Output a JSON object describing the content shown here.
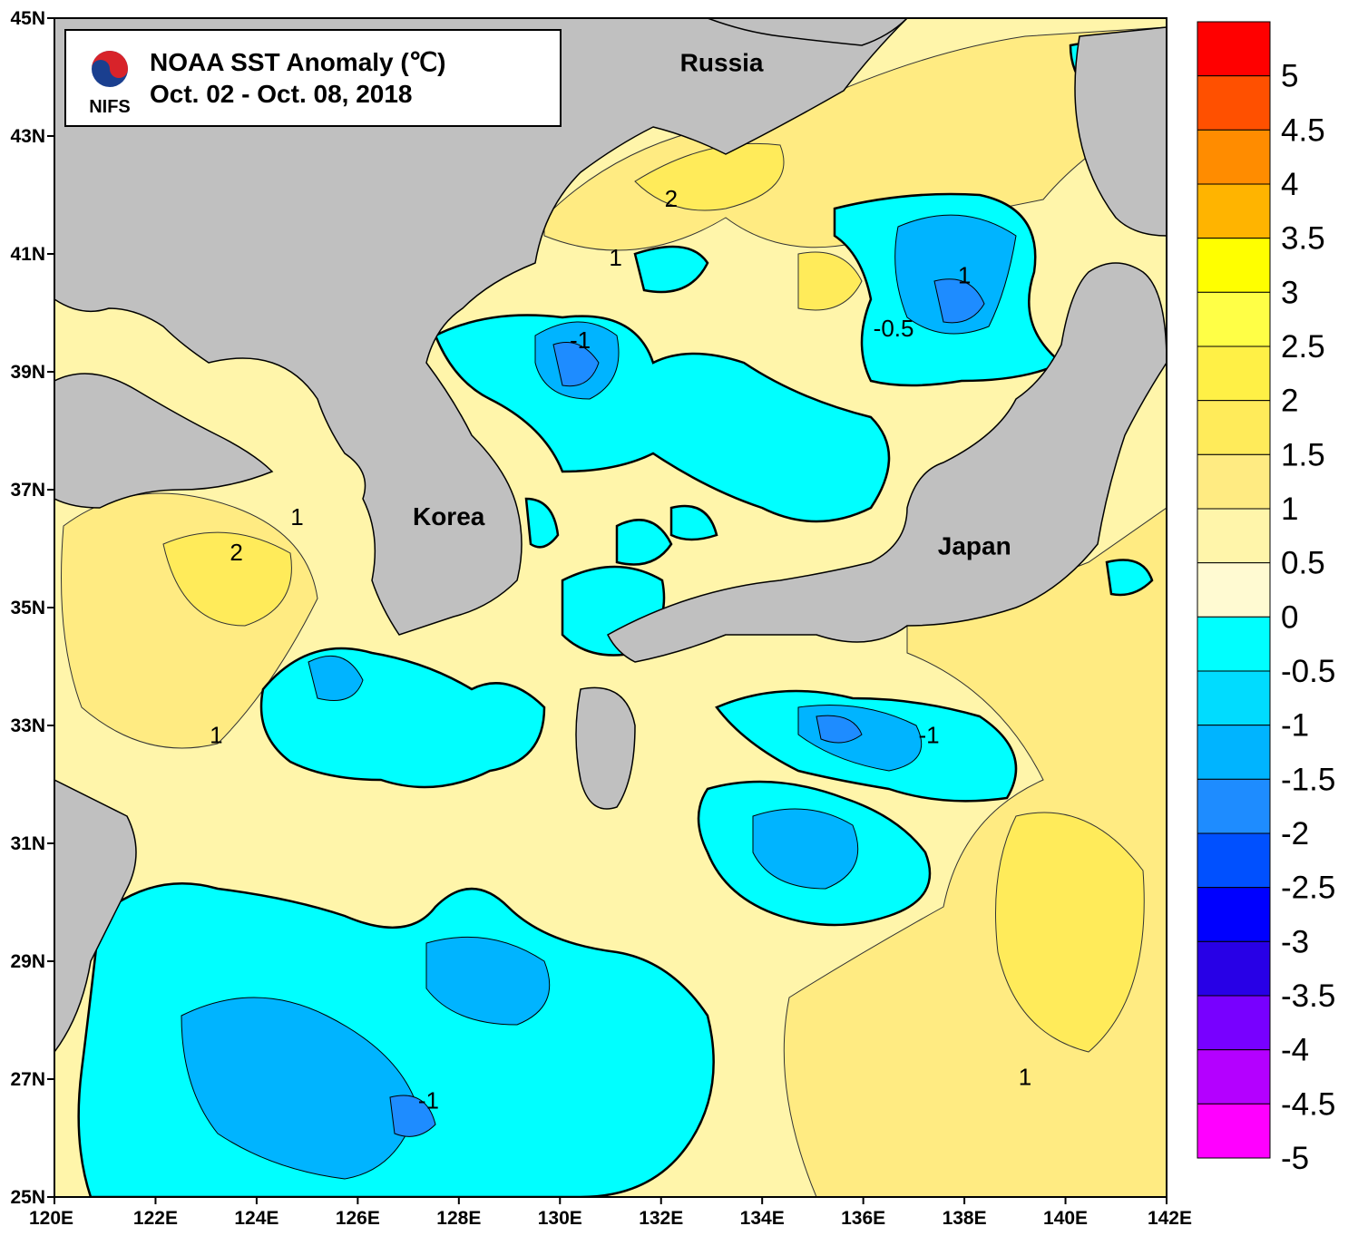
{
  "title": {
    "line1": "NOAA SST Anomaly (℃)",
    "line2": "Oct. 02 - Oct. 08, 2018",
    "logo_text": "NIFS"
  },
  "map": {
    "lon_labels": [
      "120E",
      "122E",
      "124E",
      "126E",
      "128E",
      "130E",
      "132E",
      "134E",
      "136E",
      "138E",
      "140E",
      "142E"
    ],
    "lat_labels": [
      "45N",
      "43N",
      "41N",
      "39N",
      "37N",
      "35N",
      "33N",
      "31N",
      "29N",
      "27N",
      "25N"
    ],
    "lon_range": [
      120,
      142
    ],
    "lat_range": [
      25,
      45
    ],
    "region_labels": [
      {
        "text": "Russia",
        "lon": 133.2,
        "lat": 44.1
      },
      {
        "text": "Korea",
        "lon": 127.8,
        "lat": 36.4
      },
      {
        "text": "Japan",
        "lon": 138.2,
        "lat": 35.9
      }
    ],
    "contour_labels": [
      {
        "text": "2",
        "lon": 132.2,
        "lat": 41.8
      },
      {
        "text": "1",
        "lon": 131.1,
        "lat": 40.8
      },
      {
        "text": "-1",
        "lon": 130.4,
        "lat": 39.4
      },
      {
        "text": "1",
        "lon": 138.0,
        "lat": 40.5
      },
      {
        "text": "-0.5",
        "lon": 136.6,
        "lat": 39.6
      },
      {
        "text": "1",
        "lon": 124.8,
        "lat": 36.4
      },
      {
        "text": "2",
        "lon": 123.6,
        "lat": 35.8
      },
      {
        "text": "1",
        "lon": 123.2,
        "lat": 32.7
      },
      {
        "text": "-1",
        "lon": 137.3,
        "lat": 32.7
      },
      {
        "text": "1",
        "lon": 139.2,
        "lat": 26.9
      },
      {
        "text": "-1",
        "lon": 127.4,
        "lat": 26.5
      }
    ],
    "colors": {
      "land": "#c0c0c0",
      "coast": "#000000"
    }
  },
  "colorbar": {
    "levels": [
      "5",
      "4.5",
      "4",
      "3.5",
      "3",
      "2.5",
      "2",
      "1.5",
      "1",
      "0.5",
      "0",
      "-0.5",
      "-1",
      "-1.5",
      "-2",
      "-2.5",
      "-3",
      "-3.5",
      "-4",
      "-4.5",
      "-5"
    ],
    "colors": [
      "#ff0000",
      "#ff5000",
      "#ff8c00",
      "#ffb400",
      "#ffff00",
      "#ffff46",
      "#fff046",
      "#ffeb5a",
      "#ffeb82",
      "#fff5aa",
      "#fffad2",
      "#00ffff",
      "#00dcff",
      "#00b4ff",
      "#1e8cff",
      "#0050ff",
      "#0000ff",
      "#2800e6",
      "#7800ff",
      "#b400ff",
      "#ff00ff"
    ]
  }
}
